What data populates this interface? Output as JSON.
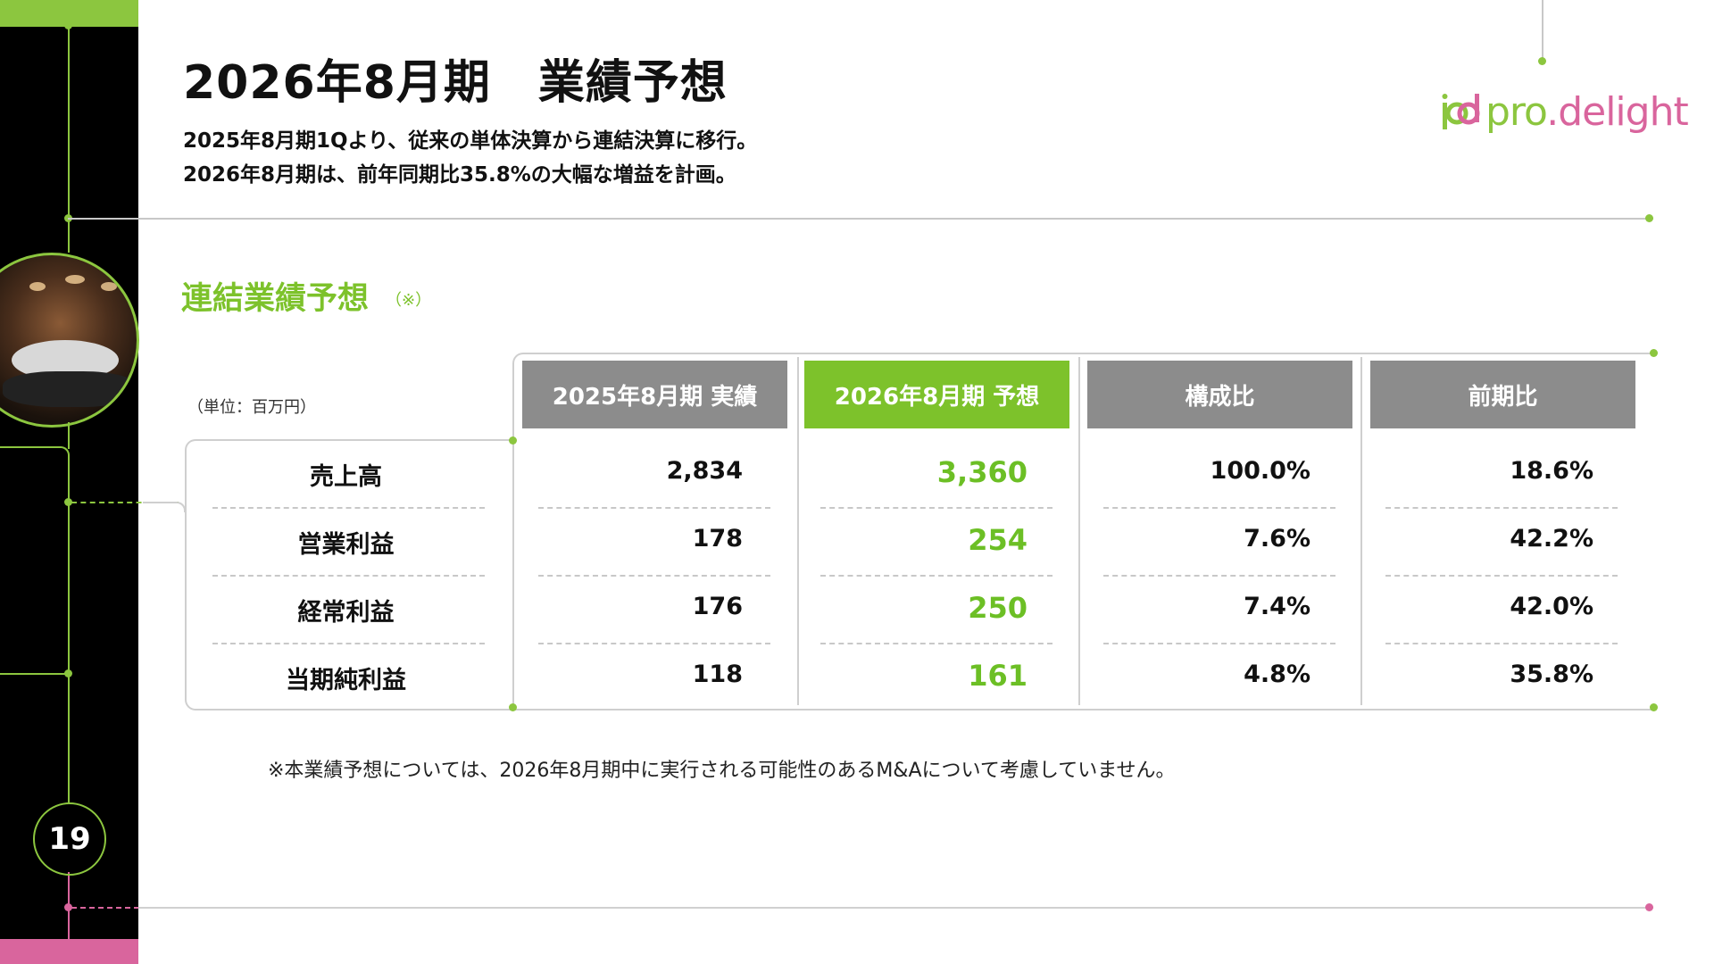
{
  "slide": {
    "page_number": "19",
    "title": "2026年8月期　業績予想",
    "subtitle_lines": [
      "2025年8月期1Qより、従来の単体決算から連結決算に移行。",
      "2026年8月期は、前年同期比35.8%の大幅な増益を計画。"
    ],
    "logo_text": "pro.delight",
    "accent_green": "#8cc63f",
    "accent_pink": "#d9659d"
  },
  "section": {
    "title": "連結業績予想",
    "note": "（※）",
    "unit": "（単位：百万円）"
  },
  "table": {
    "headers": [
      "2025年8月期 実績",
      "2026年8月期 予想",
      "構成比",
      "前期比"
    ],
    "rows": [
      {
        "label": "売上高",
        "actual": "2,834",
        "forecast": "3,360",
        "ratio": "100.0%",
        "yoy": "18.6%"
      },
      {
        "label": "営業利益",
        "actual": "178",
        "forecast": "254",
        "ratio": "7.6%",
        "yoy": "42.2%"
      },
      {
        "label": "経常利益",
        "actual": "176",
        "forecast": "250",
        "ratio": "7.4%",
        "yoy": "42.0%"
      },
      {
        "label": "当期純利益",
        "actual": "118",
        "forecast": "161",
        "ratio": "4.8%",
        "yoy": "35.8%"
      }
    ]
  },
  "footnote": "※本業績予想については、2026年8月期中に実行される可能性のあるM&Aについて考慮していません。"
}
